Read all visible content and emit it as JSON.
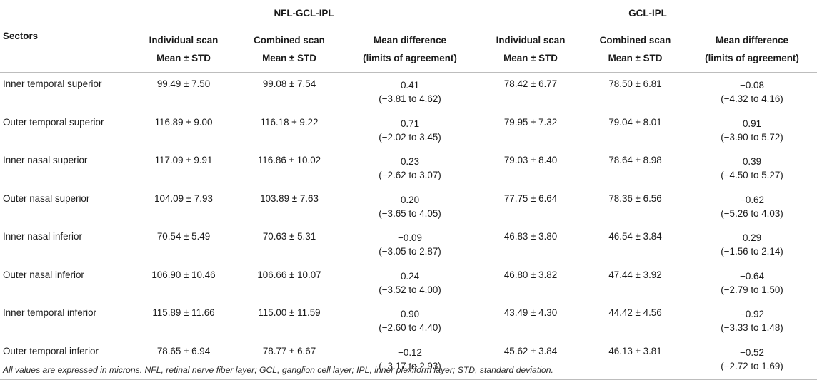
{
  "header": {
    "sectors_label": "Sectors",
    "groups": [
      {
        "label": "NFL-GCL-IPL"
      },
      {
        "label": "GCL-IPL"
      }
    ],
    "columns": [
      {
        "line1": "Individual scan",
        "line2": "Mean ± STD"
      },
      {
        "line1": "Combined scan",
        "line2": "Mean ± STD"
      },
      {
        "line1": "Mean difference",
        "line2": "(limits of agreement)"
      },
      {
        "line1": "Individual scan",
        "line2": "Mean ± STD"
      },
      {
        "line1": "Combined scan",
        "line2": "Mean ± STD"
      },
      {
        "line1": "Mean difference",
        "line2": "(limits of agreement)"
      }
    ]
  },
  "rows": [
    {
      "sector": "Inner temporal superior",
      "a_ind": "99.49 ± 7.50",
      "a_comb": "99.08 ± 7.54",
      "a_diff": "0.41",
      "a_loa": "(−3.81 to 4.62)",
      "b_ind": "78.42 ± 6.77",
      "b_comb": "78.50 ± 6.81",
      "b_diff": "−0.08",
      "b_loa": "(−4.32 to 4.16)"
    },
    {
      "sector": "Outer temporal superior",
      "a_ind": "116.89 ± 9.00",
      "a_comb": "116.18 ± 9.22",
      "a_diff": "0.71",
      "a_loa": "(−2.02 to 3.45)",
      "b_ind": "79.95 ± 7.32",
      "b_comb": "79.04 ± 8.01",
      "b_diff": "0.91",
      "b_loa": "(−3.90 to 5.72)"
    },
    {
      "sector": "Inner nasal superior",
      "a_ind": "117.09 ± 9.91",
      "a_comb": "116.86 ± 10.02",
      "a_diff": "0.23",
      "a_loa": "(−2.62 to 3.07)",
      "b_ind": "79.03 ± 8.40",
      "b_comb": "78.64 ± 8.98",
      "b_diff": "0.39",
      "b_loa": "(−4.50 to 5.27)"
    },
    {
      "sector": "Outer nasal superior",
      "a_ind": "104.09 ± 7.93",
      "a_comb": "103.89 ± 7.63",
      "a_diff": "0.20",
      "a_loa": "(−3.65 to 4.05)",
      "b_ind": "77.75 ± 6.64",
      "b_comb": "78.36 ± 6.56",
      "b_diff": "−0.62",
      "b_loa": "(−5.26 to 4.03)"
    },
    {
      "sector": "Inner nasal inferior",
      "a_ind": "70.54 ± 5.49",
      "a_comb": "70.63 ± 5.31",
      "a_diff": "−0.09",
      "a_loa": "(−3.05 to 2.87)",
      "b_ind": "46.83 ± 3.80",
      "b_comb": "46.54 ± 3.84",
      "b_diff": "0.29",
      "b_loa": "(−1.56 to 2.14)"
    },
    {
      "sector": "Outer nasal inferior",
      "a_ind": "106.90 ± 10.46",
      "a_comb": "106.66 ± 10.07",
      "a_diff": "0.24",
      "a_loa": "(−3.52 to 4.00)",
      "b_ind": "46.80 ± 3.82",
      "b_comb": "47.44 ± 3.92",
      "b_diff": "−0.64",
      "b_loa": "(−2.79 to 1.50)"
    },
    {
      "sector": "Inner temporal inferior",
      "a_ind": "115.89 ± 11.66",
      "a_comb": "115.00 ± 11.59",
      "a_diff": "0.90",
      "a_loa": "(−2.60 to 4.40)",
      "b_ind": "43.49 ± 4.30",
      "b_comb": "44.42 ± 4.56",
      "b_diff": "−0.92",
      "b_loa": "(−3.33 to 1.48)"
    },
    {
      "sector": "Outer temporal inferior",
      "a_ind": "78.65 ± 6.94",
      "a_comb": "78.77 ± 6.67",
      "a_diff": "−0.12",
      "a_loa": "(−3.17 to 2.93)",
      "b_ind": "45.62 ± 3.84",
      "b_comb": "46.13 ± 3.81",
      "b_diff": "−0.52",
      "b_loa": "(−2.72 to 1.69)"
    }
  ],
  "footnote": "All values are expressed in microns. NFL, retinal nerve fiber layer; GCL, ganglion cell layer; IPL, inner plexiform layer; STD, standard deviation."
}
